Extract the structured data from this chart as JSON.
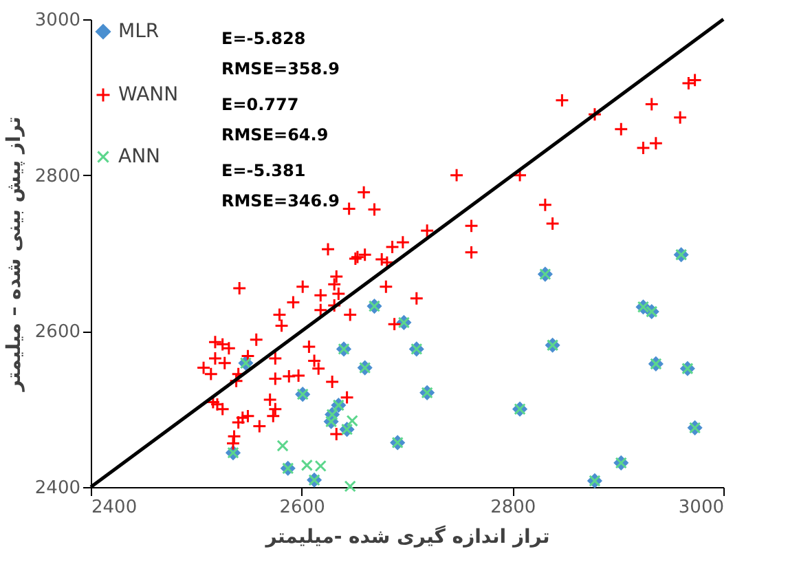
{
  "chart_data": {
    "type": "scatter",
    "xlabel": "تراز اندازه گیری شده -میلیمتر",
    "ylabel": "تراز پیش بینی شده – میلیمتر",
    "xlim": [
      2400,
      3000
    ],
    "ylim": [
      2400,
      3000
    ],
    "xticks": [
      2400,
      2600,
      2800,
      3000
    ],
    "yticks": [
      2400,
      2600,
      2800,
      3000
    ],
    "grid": false,
    "legend": "top left",
    "annotations": [
      "E=-5.828",
      "RMSE=358.9",
      "E=0.777",
      "RMSE=64.9",
      "E=-5.381",
      "RMSE=346.9"
    ],
    "series": [
      {
        "name": "MLR",
        "color": "#4a8fd0",
        "marker": "diamond",
        "x": [
          2547,
          2601,
          2640,
          2635,
          2629,
          2628,
          2643,
          2535,
          2587,
          2612,
          2660,
          2669,
          2697,
          2709,
          2719,
          2691,
          2807,
          2838,
          2831,
          2960,
          2924,
          2932,
          2936,
          2966,
          2973,
          2903,
          2878
        ],
        "values": [
          2559,
          2519,
          2577,
          2505,
          2493,
          2484,
          2474,
          2444,
          2424,
          2409,
          2553,
          2632,
          2611,
          2577,
          2521,
          2457,
          2500,
          2582,
          2673,
          2698,
          2631,
          2625,
          2558,
          2552,
          2476,
          2431,
          2408
        ]
      },
      {
        "name": "WANN",
        "color": "#ff0000",
        "marker": "plus",
        "x": [
          2541,
          2601,
          2592,
          2618,
          2633,
          2631,
          2635,
          2618,
          2631,
          2646,
          2579,
          2581,
          2557,
          2518,
          2525,
          2531,
          2518,
          2527,
          2507,
          2514,
          2549,
          2540,
          2538,
          2607,
          2612,
          2616,
          2575,
          2575,
          2588,
          2597,
          2629,
          2643,
          2570,
          2575,
          2573,
          2516,
          2520,
          2525,
          2549,
          2544,
          2540,
          2560,
          2536,
          2535,
          2633,
          2645,
          2625,
          2651,
          2659,
          2669,
          2747,
          2807,
          2847,
          2878,
          2903,
          2932,
          2967,
          2973,
          2959,
          2924,
          2936,
          2831,
          2838,
          2761,
          2761,
          2719,
          2696,
          2686,
          2653,
          2660,
          2676,
          2681,
          2680,
          2709,
          2688
        ],
        "values": [
          2655,
          2657,
          2637,
          2646,
          2670,
          2660,
          2648,
          2627,
          2633,
          2621,
          2621,
          2607,
          2589,
          2586,
          2583,
          2578,
          2565,
          2559,
          2553,
          2545,
          2568,
          2545,
          2536,
          2580,
          2562,
          2552,
          2565,
          2539,
          2542,
          2543,
          2535,
          2515,
          2512,
          2500,
          2491,
          2509,
          2506,
          2500,
          2491,
          2489,
          2483,
          2478,
          2465,
          2456,
          2468,
          2757,
          2705,
          2693,
          2778,
          2756,
          2800,
          2800,
          2896,
          2878,
          2859,
          2891,
          2918,
          2922,
          2874,
          2835,
          2841,
          2762,
          2738,
          2735,
          2701,
          2729,
          2714,
          2708,
          2695,
          2698,
          2692,
          2688,
          2657,
          2642,
          2609
        ]
      },
      {
        "name": "ANN",
        "color": "#5cd68c",
        "marker": "cross",
        "x": [
          2547,
          2601,
          2640,
          2635,
          2629,
          2628,
          2643,
          2535,
          2587,
          2612,
          2660,
          2669,
          2697,
          2709,
          2719,
          2691,
          2807,
          2838,
          2831,
          2960,
          2924,
          2932,
          2936,
          2966,
          2973,
          2903,
          2878,
          2582,
          2605,
          2618,
          2646,
          2648
        ],
        "values": [
          2559,
          2519,
          2577,
          2505,
          2493,
          2484,
          2474,
          2444,
          2424,
          2409,
          2553,
          2632,
          2611,
          2577,
          2521,
          2457,
          2500,
          2582,
          2673,
          2698,
          2631,
          2625,
          2558,
          2552,
          2476,
          2431,
          2408,
          2453,
          2428,
          2427,
          2401,
          2485
        ]
      },
      {
        "type": "line",
        "color": "#000000",
        "line_style": "solid",
        "x": [
          2400,
          3000
        ],
        "values": [
          2400,
          3000
        ]
      }
    ]
  }
}
